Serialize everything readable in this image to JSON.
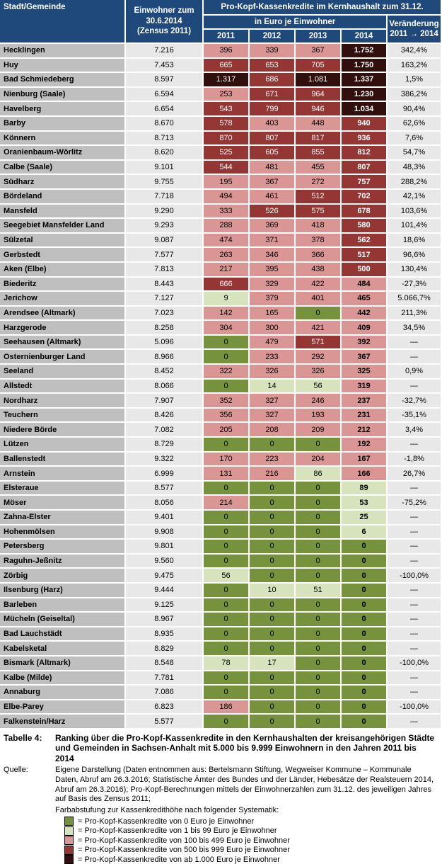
{
  "colors": {
    "header_bg": "#20497B",
    "name_col_bg": "#BFBFBF",
    "light_col_bg": "#E8E8E8",
    "cat_zero": "#76923C",
    "cat_low": "#D6E3BC",
    "cat_mid": "#D99694",
    "cat_high": "#943634",
    "cat_extreme": "#300F0D"
  },
  "header": {
    "col_city": "Stadt/Gemeinde",
    "col_pop_lines": [
      "Einwohner zum",
      "30.6.2014",
      "(Zensus 2011)"
    ],
    "group_title": "Pro-Kopf-Kassenkredite im Kernhaushalt zum 31.12.",
    "sub_title": "in Euro je Einwohner",
    "years": [
      "2011",
      "2012",
      "2013",
      "2014"
    ],
    "col_change_lines": [
      "Veränderung",
      "2011 → 2014"
    ]
  },
  "rows": [
    {
      "name": "Hecklingen",
      "pop": "7.216",
      "values": [
        "396",
        "339",
        "367",
        "1.752"
      ],
      "change": "342,4%"
    },
    {
      "name": "Huy",
      "pop": "7.453",
      "values": [
        "665",
        "653",
        "705",
        "1.750"
      ],
      "change": "163,2%"
    },
    {
      "name": "Bad Schmiedeberg",
      "pop": "8.597",
      "values": [
        "1.317",
        "686",
        "1.081",
        "1.337"
      ],
      "change": "1,5%"
    },
    {
      "name": "Nienburg (Saale)",
      "pop": "6.594",
      "values": [
        "253",
        "671",
        "964",
        "1.230"
      ],
      "change": "386,2%"
    },
    {
      "name": "Havelberg",
      "pop": "6.654",
      "values": [
        "543",
        "799",
        "946",
        "1.034"
      ],
      "change": "90,4%"
    },
    {
      "name": "Barby",
      "pop": "8.670",
      "values": [
        "578",
        "403",
        "448",
        "940"
      ],
      "change": "62,6%"
    },
    {
      "name": "Könnern",
      "pop": "8.713",
      "values": [
        "870",
        "807",
        "817",
        "936"
      ],
      "change": "7,6%"
    },
    {
      "name": "Oranienbaum-Wörlitz",
      "pop": "8.620",
      "values": [
        "525",
        "605",
        "855",
        "812"
      ],
      "change": "54,7%"
    },
    {
      "name": "Calbe (Saale)",
      "pop": "9.101",
      "values": [
        "544",
        "481",
        "455",
        "807"
      ],
      "change": "48,3%"
    },
    {
      "name": "Südharz",
      "pop": "9.755",
      "values": [
        "195",
        "367",
        "272",
        "757"
      ],
      "change": "288,2%"
    },
    {
      "name": "Bördeland",
      "pop": "7.718",
      "values": [
        "494",
        "461",
        "512",
        "702"
      ],
      "change": "42,1%"
    },
    {
      "name": "Mansfeld",
      "pop": "9.290",
      "values": [
        "333",
        "526",
        "575",
        "678"
      ],
      "change": "103,6%"
    },
    {
      "name": "Seegebiet Mansfelder Land",
      "pop": "9.293",
      "values": [
        "288",
        "369",
        "418",
        "580"
      ],
      "change": "101,4%"
    },
    {
      "name": "Sülzetal",
      "pop": "9.087",
      "values": [
        "474",
        "371",
        "378",
        "562"
      ],
      "change": "18,6%"
    },
    {
      "name": "Gerbstedt",
      "pop": "7.577",
      "values": [
        "263",
        "346",
        "366",
        "517"
      ],
      "change": "96,6%"
    },
    {
      "name": "Aken (Elbe)",
      "pop": "7.813",
      "values": [
        "217",
        "395",
        "438",
        "500"
      ],
      "change": "130,4%"
    },
    {
      "name": "Biederitz",
      "pop": "8.443",
      "values": [
        "666",
        "329",
        "422",
        "484"
      ],
      "change": "-27,3%"
    },
    {
      "name": "Jerichow",
      "pop": "7.127",
      "values": [
        "9",
        "379",
        "401",
        "465"
      ],
      "change": "5.066,7%"
    },
    {
      "name": "Arendsee (Altmark)",
      "pop": "7.023",
      "values": [
        "142",
        "165",
        "0",
        "442"
      ],
      "change": "211,3%"
    },
    {
      "name": "Harzgerode",
      "pop": "8.258",
      "values": [
        "304",
        "300",
        "421",
        "409"
      ],
      "change": "34,5%"
    },
    {
      "name": "Seehausen (Altmark)",
      "pop": "5.096",
      "values": [
        "0",
        "479",
        "571",
        "392"
      ],
      "change": "—"
    },
    {
      "name": "Osternienburger Land",
      "pop": "8.966",
      "values": [
        "0",
        "233",
        "292",
        "367"
      ],
      "change": "—"
    },
    {
      "name": "Seeland",
      "pop": "8.452",
      "values": [
        "322",
        "326",
        "326",
        "325"
      ],
      "change": "0,9%"
    },
    {
      "name": "Allstedt",
      "pop": "8.066",
      "values": [
        "0",
        "14",
        "56",
        "319"
      ],
      "change": "—"
    },
    {
      "name": "Nordharz",
      "pop": "7.907",
      "values": [
        "352",
        "327",
        "246",
        "237"
      ],
      "change": "-32,7%"
    },
    {
      "name": "Teuchern",
      "pop": "8.426",
      "values": [
        "356",
        "327",
        "193",
        "231"
      ],
      "change": "-35,1%"
    },
    {
      "name": "Niedere Börde",
      "pop": "7.082",
      "values": [
        "205",
        "208",
        "209",
        "212"
      ],
      "change": "3,4%"
    },
    {
      "name": "Lützen",
      "pop": "8.729",
      "values": [
        "0",
        "0",
        "0",
        "192"
      ],
      "change": "—"
    },
    {
      "name": "Ballenstedt",
      "pop": "9.322",
      "values": [
        "170",
        "223",
        "204",
        "167"
      ],
      "change": "-1,8%"
    },
    {
      "name": "Arnstein",
      "pop": "6.999",
      "values": [
        "131",
        "216",
        "86",
        "166"
      ],
      "change": "26,7%"
    },
    {
      "name": "Elsteraue",
      "pop": "8.577",
      "values": [
        "0",
        "0",
        "0",
        "89"
      ],
      "change": "—"
    },
    {
      "name": "Möser",
      "pop": "8.056",
      "values": [
        "214",
        "0",
        "0",
        "53"
      ],
      "change": "-75,2%"
    },
    {
      "name": "Zahna-Elster",
      "pop": "9.401",
      "values": [
        "0",
        "0",
        "0",
        "25"
      ],
      "change": "—"
    },
    {
      "name": "Hohenmölsen",
      "pop": "9.908",
      "values": [
        "0",
        "0",
        "0",
        "6"
      ],
      "change": "—"
    },
    {
      "name": "Petersberg",
      "pop": "9.801",
      "values": [
        "0",
        "0",
        "0",
        "0"
      ],
      "change": "—"
    },
    {
      "name": "Raguhn-Jeßnitz",
      "pop": "9.560",
      "values": [
        "0",
        "0",
        "0",
        "0"
      ],
      "change": "—"
    },
    {
      "name": "Zörbig",
      "pop": "9.475",
      "values": [
        "56",
        "0",
        "0",
        "0"
      ],
      "change": "-100,0%"
    },
    {
      "name": "Ilsenburg (Harz)",
      "pop": "9.444",
      "values": [
        "0",
        "10",
        "51",
        "0"
      ],
      "change": "—"
    },
    {
      "name": "Barleben",
      "pop": "9.125",
      "values": [
        "0",
        "0",
        "0",
        "0"
      ],
      "change": "—"
    },
    {
      "name": "Mücheln (Geiseltal)",
      "pop": "8.967",
      "values": [
        "0",
        "0",
        "0",
        "0"
      ],
      "change": "—"
    },
    {
      "name": "Bad Lauchstädt",
      "pop": "8.935",
      "values": [
        "0",
        "0",
        "0",
        "0"
      ],
      "change": "—"
    },
    {
      "name": "Kabelsketal",
      "pop": "8.829",
      "values": [
        "0",
        "0",
        "0",
        "0"
      ],
      "change": "—"
    },
    {
      "name": "Bismark (Altmark)",
      "pop": "8.548",
      "values": [
        "78",
        "17",
        "0",
        "0"
      ],
      "change": "-100,0%"
    },
    {
      "name": "Kalbe (Milde)",
      "pop": "7.781",
      "values": [
        "0",
        "0",
        "0",
        "0"
      ],
      "change": "—"
    },
    {
      "name": "Annaburg",
      "pop": "7.086",
      "values": [
        "0",
        "0",
        "0",
        "0"
      ],
      "change": "—"
    },
    {
      "name": "Elbe-Parey",
      "pop": "6.823",
      "values": [
        "186",
        "0",
        "0",
        "0"
      ],
      "change": "-100,0%"
    },
    {
      "name": "Falkenstein/Harz",
      "pop": "5.577",
      "values": [
        "0",
        "0",
        "0",
        "0"
      ],
      "change": "—"
    }
  ],
  "footer": {
    "table_label": "Tabelle 4:",
    "caption": "Ranking über die Pro-Kopf-Kassenkredite in den Kernhaushalten der kreisangehörigen Städte und Gemeinden in Sachsen-Anhalt mit 5.000 bis 9.999 Einwohnern in den Jahren 2011 bis 2014",
    "source_label": "Quelle:",
    "source": "Eigene Darstellung (Daten entnommen aus: Bertelsmann Stiftung, Wegweiser Kommune – Kommunale Daten, Abruf am 26.3.2016; Statistische Ämter des Bundes und der Länder, Hebesätze der Realsteuern 2014, Abruf am 26.3.2016); Pro-Kopf-Berechnungen mittels der Einwohnerzahlen zum 31.12. des jeweiligen Jahres auf Basis des Zensus 2011;",
    "legend_intro": "Farbabstufung zur Kassenkredithöhe nach folgender Systematik:",
    "legend": [
      {
        "color_key": "cat_zero",
        "label": "= Pro-Kopf-Kassenkredite von 0 Euro je Einwohner"
      },
      {
        "color_key": "cat_low",
        "label": "= Pro-Kopf-Kassenkredite von 1 bis 99 Euro je Einwohner"
      },
      {
        "color_key": "cat_mid",
        "label": "= Pro-Kopf-Kassenkredite von 100 bis 499 Euro je Einwohner"
      },
      {
        "color_key": "cat_high",
        "label": "= Pro-Kopf-Kassenkredite von 500 bis 999 Euro je Einwohner"
      },
      {
        "color_key": "cat_extreme",
        "label": "= Pro-Kopf-Kassenkredite von ab 1.000 Euro je Einwohner"
      }
    ]
  }
}
